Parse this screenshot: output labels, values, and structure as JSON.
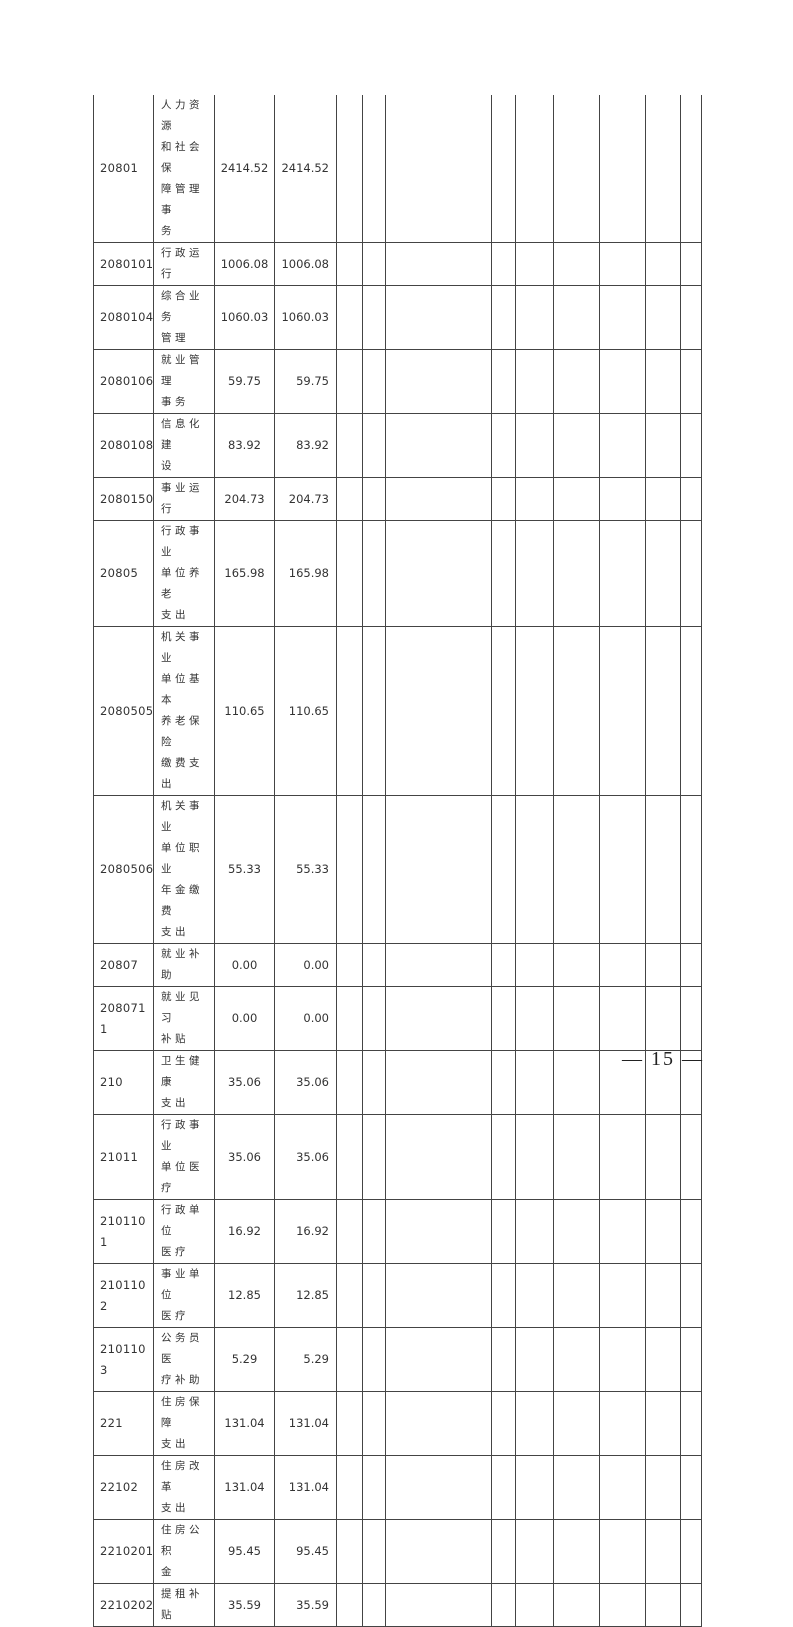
{
  "rows": [
    {
      "code": "20801",
      "name": "人力资源\n和社会保\n障管理事\n务",
      "v1": "2414.52",
      "v2": "2414.52"
    },
    {
      "code": "2080101",
      "name": "行政运行",
      "v1": "1006.08",
      "v2": "1006.08"
    },
    {
      "code": "2080104",
      "name": "综合业务\n管理",
      "v1": "1060.03",
      "v2": "1060.03"
    },
    {
      "code": "2080106",
      "name": "就业管理\n事务",
      "v1": "59.75",
      "v2": "59.75"
    },
    {
      "code": "2080108",
      "name": "信息化建\n设",
      "v1": "83.92",
      "v2": "83.92"
    },
    {
      "code": "2080150",
      "name": "事业运行",
      "v1": "204.73",
      "v2": "204.73"
    },
    {
      "code": "20805",
      "name": "行政事业\n单位养老\n支出",
      "v1": "165.98",
      "v2": "165.98"
    },
    {
      "code": "2080505",
      "name": "机关事业\n单位基本\n养老保险\n缴费支出",
      "v1": "110.65",
      "v2": "110.65"
    },
    {
      "code": "2080506",
      "name": "机关事业\n单位职业\n年金缴费\n支出",
      "v1": "55.33",
      "v2": "55.33"
    },
    {
      "code": "20807",
      "name": "就业补助",
      "v1": "0.00",
      "v2": "0.00"
    },
    {
      "code": "208071\n1",
      "name": "就业见习\n补贴",
      "v1": "0.00",
      "v2": "0.00"
    },
    {
      "code": "210",
      "name": "卫生健康\n支出",
      "v1": "35.06",
      "v2": "35.06"
    },
    {
      "code": "21011",
      "name": "行政事业\n单位医疗",
      "v1": "35.06",
      "v2": "35.06"
    },
    {
      "code": "210110\n1",
      "name": "行政单位\n医疗",
      "v1": "16.92",
      "v2": "16.92"
    },
    {
      "code": "210110\n2",
      "name": "事业单位\n医疗",
      "v1": "12.85",
      "v2": "12.85"
    },
    {
      "code": "210110\n3",
      "name": "公务员医\n疗补助",
      "v1": "5.29",
      "v2": "5.29"
    },
    {
      "code": "221",
      "name": "住房保障\n支出",
      "v1": "131.04",
      "v2": "131.04"
    },
    {
      "code": "22102",
      "name": "住房改革\n支出",
      "v1": "131.04",
      "v2": "131.04"
    },
    {
      "code": "2210201",
      "name": "住房公积\n金",
      "v1": "95.45",
      "v2": "95.45"
    },
    {
      "code": "2210202",
      "name": "提租补贴",
      "v1": "35.59",
      "v2": "35.59"
    }
  ],
  "page_number": "— 15 —"
}
